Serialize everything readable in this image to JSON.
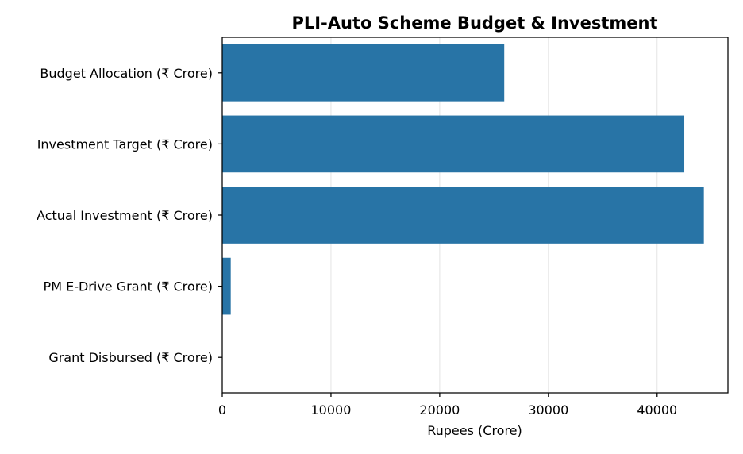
{
  "chart_data": {
    "type": "bar",
    "orientation": "horizontal",
    "title": "PLI-Auto Scheme Budget & Investment",
    "xlabel": "Rupees (Crore)",
    "ylabel": "",
    "categories": [
      "Budget Allocation (₹ Crore)",
      "Investment Target (₹ Crore)",
      "Actual Investment (₹ Crore)",
      "PM E-Drive Grant (₹ Crore)",
      "Grant Disbursed (₹ Crore)"
    ],
    "values": [
      25938,
      42500,
      44300,
      780,
      0
    ],
    "xlim": [
      0,
      46515
    ],
    "xticks": [
      0,
      10000,
      20000,
      30000,
      40000
    ],
    "grid": true,
    "grid_axis": "x",
    "bar_color": "#2874a6"
  }
}
